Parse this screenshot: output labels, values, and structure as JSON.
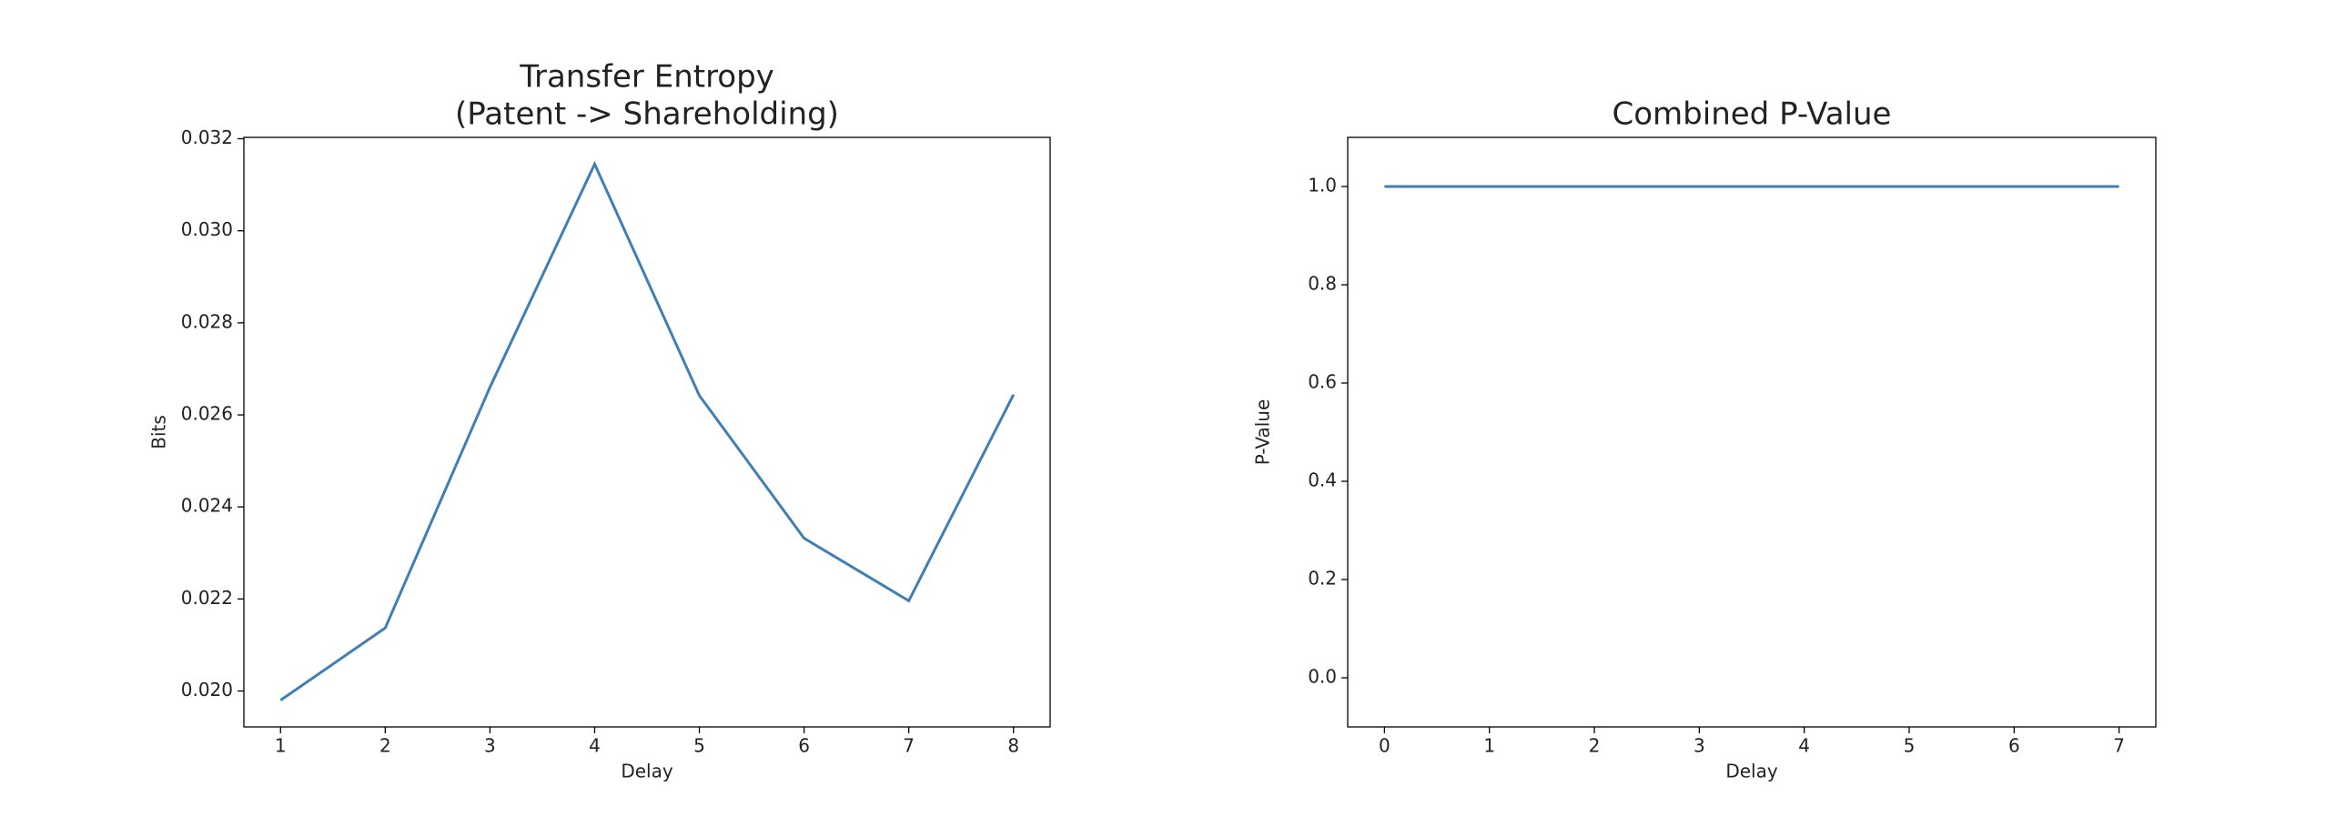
{
  "chart_data": [
    {
      "type": "line",
      "title": [
        "Transfer Entropy",
        "(Patent -> Shareholding)"
      ],
      "xlabel": "Delay",
      "ylabel": "Bits",
      "x": [
        1,
        2,
        3,
        4,
        5,
        6,
        7,
        8
      ],
      "series": [
        {
          "name": "Bits",
          "color": "#3f7fb5",
          "values": [
            0.0198,
            0.02137,
            0.0266,
            0.03145,
            0.02642,
            0.02332,
            0.02196,
            0.02644
          ]
        }
      ],
      "xlim": [
        0.65,
        8.35
      ],
      "xticks": [
        1,
        2,
        3,
        4,
        5,
        6,
        7,
        8
      ],
      "ylim": [
        0.01922,
        0.03203
      ],
      "yticks": [
        {
          "value": 0.02,
          "label": "0.020"
        },
        {
          "value": 0.022,
          "label": "0.022"
        },
        {
          "value": 0.024,
          "label": "0.024"
        },
        {
          "value": 0.026,
          "label": "0.026"
        },
        {
          "value": 0.028,
          "label": "0.028"
        },
        {
          "value": 0.03,
          "label": "0.030"
        },
        {
          "value": 0.032,
          "label": "0.032"
        }
      ]
    },
    {
      "type": "line",
      "title": [
        "Combined P-Value"
      ],
      "xlabel": "Delay",
      "ylabel": "P-Value",
      "x": [
        0,
        1,
        2,
        3,
        4,
        5,
        6,
        7
      ],
      "series": [
        {
          "name": "P-Value",
          "color": "#3f7fb5",
          "values": [
            1,
            1,
            1,
            1,
            1,
            1,
            1,
            1
          ]
        }
      ],
      "xlim": [
        -0.35,
        7.35
      ],
      "xticks": [
        0,
        1,
        2,
        3,
        4,
        5,
        6,
        7
      ],
      "ylim": [
        -0.1,
        1.1
      ],
      "yticks": [
        {
          "value": 0,
          "label": "0.0"
        },
        {
          "value": 0.2,
          "label": "0.2"
        },
        {
          "value": 0.4,
          "label": "0.4"
        },
        {
          "value": 0.6,
          "label": "0.6"
        },
        {
          "value": 0.8,
          "label": "0.8"
        },
        {
          "value": 1,
          "label": "1.0"
        }
      ]
    }
  ]
}
